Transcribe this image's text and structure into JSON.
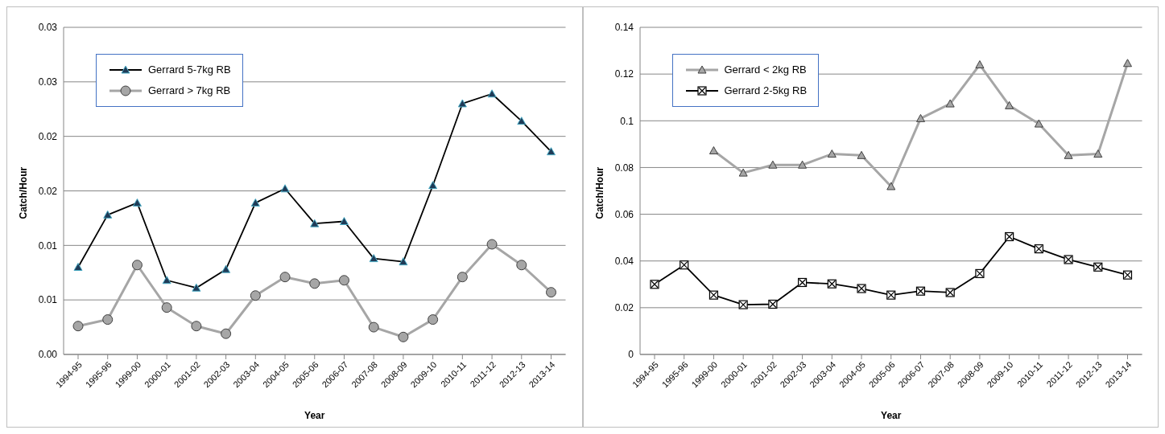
{
  "chart_data": [
    {
      "type": "line",
      "xlabel": "Year",
      "ylabel": "Catch/Hour",
      "categories": [
        "1994-95",
        "1995-96",
        "1999-00",
        "2000-01",
        "2001-02",
        "2002-03",
        "2003-04",
        "2004-05",
        "2005-06",
        "2006-07",
        "2007-08",
        "2008-09",
        "2009-10",
        "2010-11",
        "2011-12",
        "2012-13",
        "2013-14"
      ],
      "series": [
        {
          "name": "Gerrard 5-7kg RB",
          "color": "#000000",
          "marker": "triangle",
          "values": [
            0.008,
            0.0128,
            0.0139,
            0.0068,
            0.0061,
            0.0078,
            0.0139,
            0.0152,
            0.012,
            0.0122,
            0.0088,
            0.0085,
            0.0155,
            0.023,
            0.0239,
            0.0214,
            0.0186
          ]
        },
        {
          "name": "Gerrard > 7kg RB",
          "color": "#a6a6a6",
          "marker": "circle",
          "values": [
            0.0026,
            0.0032,
            0.0082,
            0.0043,
            0.0026,
            0.0019,
            0.0054,
            0.0071,
            0.0065,
            0.0068,
            0.0025,
            0.0016,
            0.0032,
            0.0071,
            0.0101,
            0.0082,
            0.0057
          ]
        }
      ],
      "ylim": [
        0,
        0.03
      ],
      "yticks": [
        {
          "value": 0,
          "label": "0.00"
        },
        {
          "value": 0.005,
          "label": "0.01"
        },
        {
          "value": 0.01,
          "label": "0.01"
        },
        {
          "value": 0.015,
          "label": "0.02"
        },
        {
          "value": 0.02,
          "label": "0.02"
        },
        {
          "value": 0.025,
          "label": "0.03"
        },
        {
          "value": 0.03,
          "label": "0.03"
        }
      ],
      "grid": "y",
      "legend": "top left",
      "line_style": "solid"
    },
    {
      "type": "line",
      "xlabel": "Year",
      "ylabel": "Catch/Hour",
      "categories": [
        "1994-95",
        "1995-96",
        "1999-00",
        "2000-01",
        "2001-02",
        "2002-03",
        "2003-04",
        "2004-05",
        "2005-06",
        "2006-07",
        "2007-08",
        "2008-09",
        "2009-10",
        "2010-11",
        "2011-12",
        "2012-13",
        "2013-14"
      ],
      "series": [
        {
          "name": "Gerrard < 2kg RB",
          "color": "#a6a6a6",
          "marker": "triangle",
          "values": [
            null,
            null,
            0.0872,
            0.0777,
            0.0811,
            0.0811,
            0.0858,
            0.0852,
            0.0719,
            0.101,
            0.1073,
            0.124,
            0.1065,
            0.0987,
            0.0852,
            0.0858,
            0.1246
          ]
        },
        {
          "name": "Gerrard 2-5kg RB",
          "color": "#000000",
          "marker": "square",
          "values": [
            0.03,
            0.0383,
            0.0254,
            0.0213,
            0.0215,
            0.0308,
            0.0302,
            0.0282,
            0.0254,
            0.0271,
            0.0265,
            0.0346,
            0.0504,
            0.0452,
            0.0406,
            0.0374,
            0.034
          ]
        }
      ],
      "ylim": [
        0,
        0.14
      ],
      "yticks": [
        0,
        0.02,
        0.04,
        0.06,
        0.08,
        0.1,
        0.12,
        0.14
      ],
      "grid": "y",
      "legend": "top left",
      "line_style": "solid"
    }
  ]
}
